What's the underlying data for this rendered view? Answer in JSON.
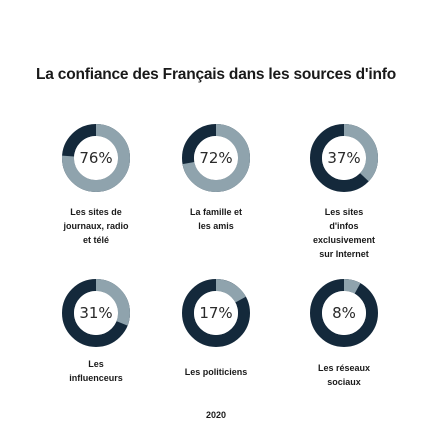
{
  "colors": {
    "dark": "#14293b",
    "light": "#8fa3ad",
    "center": "#ffffff"
  },
  "chart_data": {
    "type": "donut",
    "title": "La confiance des Français dans les sources d'info",
    "items": [
      {
        "label": "Les sites de\njournaux, radio\net télé",
        "value": 76,
        "display": "76%"
      },
      {
        "label": "La famille et\nles amis",
        "value": 72,
        "display": "72%"
      },
      {
        "label": "Les sites\nd'infos\nexclusivement\nsur Internet",
        "value": 37,
        "display": "37%"
      },
      {
        "label": "Les\ninfluenceurs",
        "value": 31,
        "display": "31%"
      },
      {
        "label": "Les politiciens",
        "value": 17,
        "display": "17%"
      },
      {
        "label": "Les réseaux\nsociaux",
        "value": 8,
        "display": "8%"
      }
    ],
    "year": "2020"
  }
}
